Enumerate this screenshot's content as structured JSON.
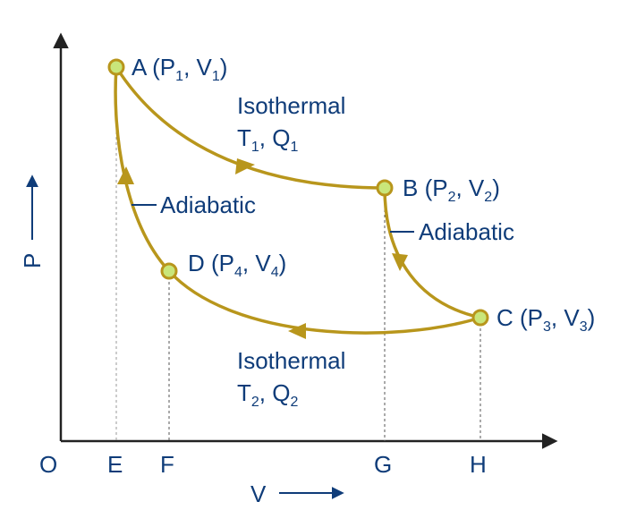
{
  "colors": {
    "curve": "#b8961c",
    "point_fill": "#c9e67a",
    "text": "#0f3c79",
    "axis": "#222222",
    "guide": "#555555"
  },
  "axes": {
    "origin": "O",
    "x_label": "V",
    "y_label": "P",
    "x_ticks": [
      "E",
      "F",
      "G",
      "H"
    ]
  },
  "points": {
    "A": {
      "letter": "A",
      "p": "1",
      "v": "1"
    },
    "B": {
      "letter": "B",
      "p": "2",
      "v": "2"
    },
    "C": {
      "letter": "C",
      "p": "3",
      "v": "3"
    },
    "D": {
      "letter": "D",
      "p": "4",
      "v": "4"
    }
  },
  "processes": {
    "top": {
      "name": "Isothermal",
      "t": "1",
      "q": "1"
    },
    "right": {
      "name": "Adiabatic"
    },
    "bottom": {
      "name": "Isothermal",
      "t": "2",
      "q": "2"
    },
    "left": {
      "name": "Adiabatic"
    }
  },
  "icons": [
    "arrow-head-icon",
    "point-marker-icon"
  ]
}
